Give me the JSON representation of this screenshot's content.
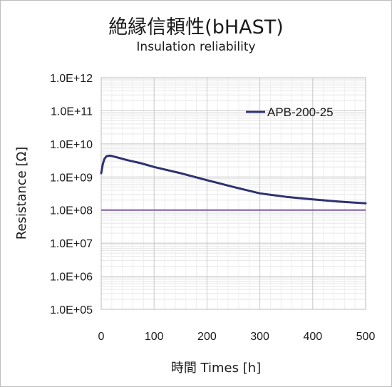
{
  "chart_data": {
    "type": "line",
    "title": "絶縁信頼性(bHAST)",
    "subtitle": "Insulation reliability",
    "xlabel": "時間 Times [h]",
    "ylabel": "Resistance [Ω]",
    "xlim": [
      0,
      500
    ],
    "ylim": [
      100000,
      1000000000000
    ],
    "yscale": "log",
    "grid": true,
    "legend_position": "top-right",
    "x_ticks": [
      0,
      100,
      200,
      300,
      400,
      500
    ],
    "x_tick_labels": [
      "0",
      "100",
      "200",
      "300",
      "400",
      "500"
    ],
    "y_ticks": [
      100000,
      1000000,
      10000000,
      100000000,
      1000000000,
      10000000000,
      100000000000,
      1000000000000
    ],
    "y_tick_labels": [
      "1.0E+05",
      "1.0E+06",
      "1.0E+07",
      "1.0E+08",
      "1.0E+09",
      "1.0E+10",
      "1.0E+11",
      "1.0E+12"
    ],
    "series": [
      {
        "name": "APB-200-25",
        "color": "#2e3272",
        "x": [
          0,
          3,
          6,
          10,
          15,
          20,
          30,
          50,
          75,
          100,
          150,
          200,
          250,
          300,
          350,
          400,
          450,
          500
        ],
        "y": [
          1300000000,
          2400000000,
          3500000000,
          4200000000,
          4400000000,
          4300000000,
          3900000000,
          3200000000,
          2600000000,
          2000000000,
          1300000000,
          800000000,
          500000000,
          320000000,
          250000000,
          210000000,
          180000000,
          160000000
        ]
      }
    ],
    "reference_line": {
      "y": 100000000,
      "color": "#7b5aa6"
    }
  }
}
